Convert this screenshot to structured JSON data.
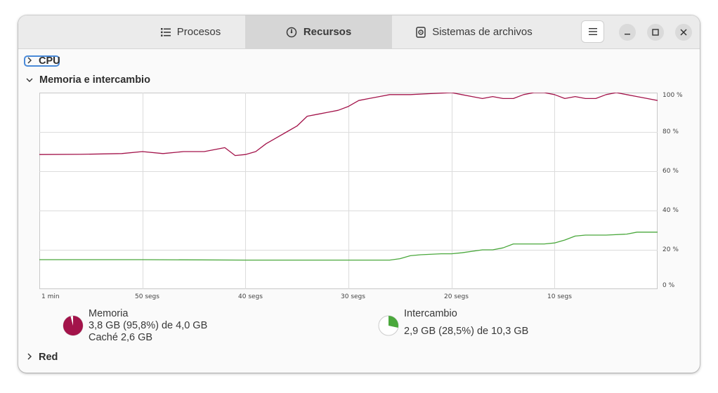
{
  "tabs": [
    {
      "label": "Procesos"
    },
    {
      "label": "Recursos"
    },
    {
      "label": "Sistemas de archivos"
    }
  ],
  "sections": {
    "cpu": {
      "label": "CPU"
    },
    "memory": {
      "label": "Memoria e intercambio"
    },
    "network": {
      "label": "Red"
    }
  },
  "legend": {
    "memory": {
      "title": "Memoria",
      "usage": "3,8 GB (95,8%) de 4,0 GB",
      "cache": "Caché 2,6 GB",
      "color": "#a3134a",
      "fraction": 0.958
    },
    "swap": {
      "title": "Intercambio",
      "usage": "2,9 GB (28,5%) de 10,3 GB",
      "color": "#4aa83c",
      "fraction": 0.285
    }
  },
  "chart_data": {
    "type": "line",
    "x_tick_labels": [
      "1 min",
      "50 segs",
      "40 segs",
      "30 segs",
      "20 segs",
      "10 segs"
    ],
    "y_tick_labels": [
      "100 %",
      "80 %",
      "60 %",
      "40 %",
      "20 %",
      "0 %"
    ],
    "ylim": [
      0,
      100
    ],
    "xlim": [
      60,
      0
    ],
    "grid": true,
    "series": [
      {
        "name": "Memoria",
        "color": "#a3134a",
        "x": [
          60,
          56,
          52,
          50,
          48,
          46,
          44,
          42,
          41,
          40,
          39,
          38,
          37,
          36,
          35,
          34,
          33,
          32,
          31,
          30,
          29,
          28,
          27,
          26,
          25,
          24,
          22,
          20,
          19,
          18,
          17,
          16,
          15,
          14,
          13,
          12,
          11,
          10,
          9,
          8,
          7,
          6,
          5,
          4,
          3,
          2,
          1,
          0
        ],
        "values": [
          68.5,
          68.6,
          69,
          70,
          69,
          70,
          70,
          72,
          68,
          68.5,
          70,
          74,
          77,
          80,
          83,
          88,
          89,
          90,
          91,
          93,
          96,
          97,
          98,
          99,
          99,
          99,
          99.5,
          100,
          99,
          98,
          97,
          98,
          97,
          97,
          99,
          100,
          101,
          99,
          97,
          98,
          97,
          97,
          99,
          100,
          99,
          98,
          97,
          96
        ]
      },
      {
        "name": "Intercambio",
        "color": "#4aa83c",
        "x": [
          60,
          50,
          40,
          35,
          30,
          26,
          25,
          24,
          23,
          21,
          20,
          19,
          17,
          16,
          15,
          14,
          12,
          11,
          10,
          9,
          8,
          7,
          5,
          3,
          2,
          1,
          0
        ],
        "values": [
          15,
          15,
          14.8,
          14.8,
          14.8,
          14.8,
          15.5,
          17,
          17.5,
          18,
          18,
          18.5,
          20,
          20,
          21,
          23,
          23,
          23,
          23.5,
          25,
          27,
          27.5,
          27.5,
          28,
          29,
          29,
          29
        ]
      }
    ]
  }
}
